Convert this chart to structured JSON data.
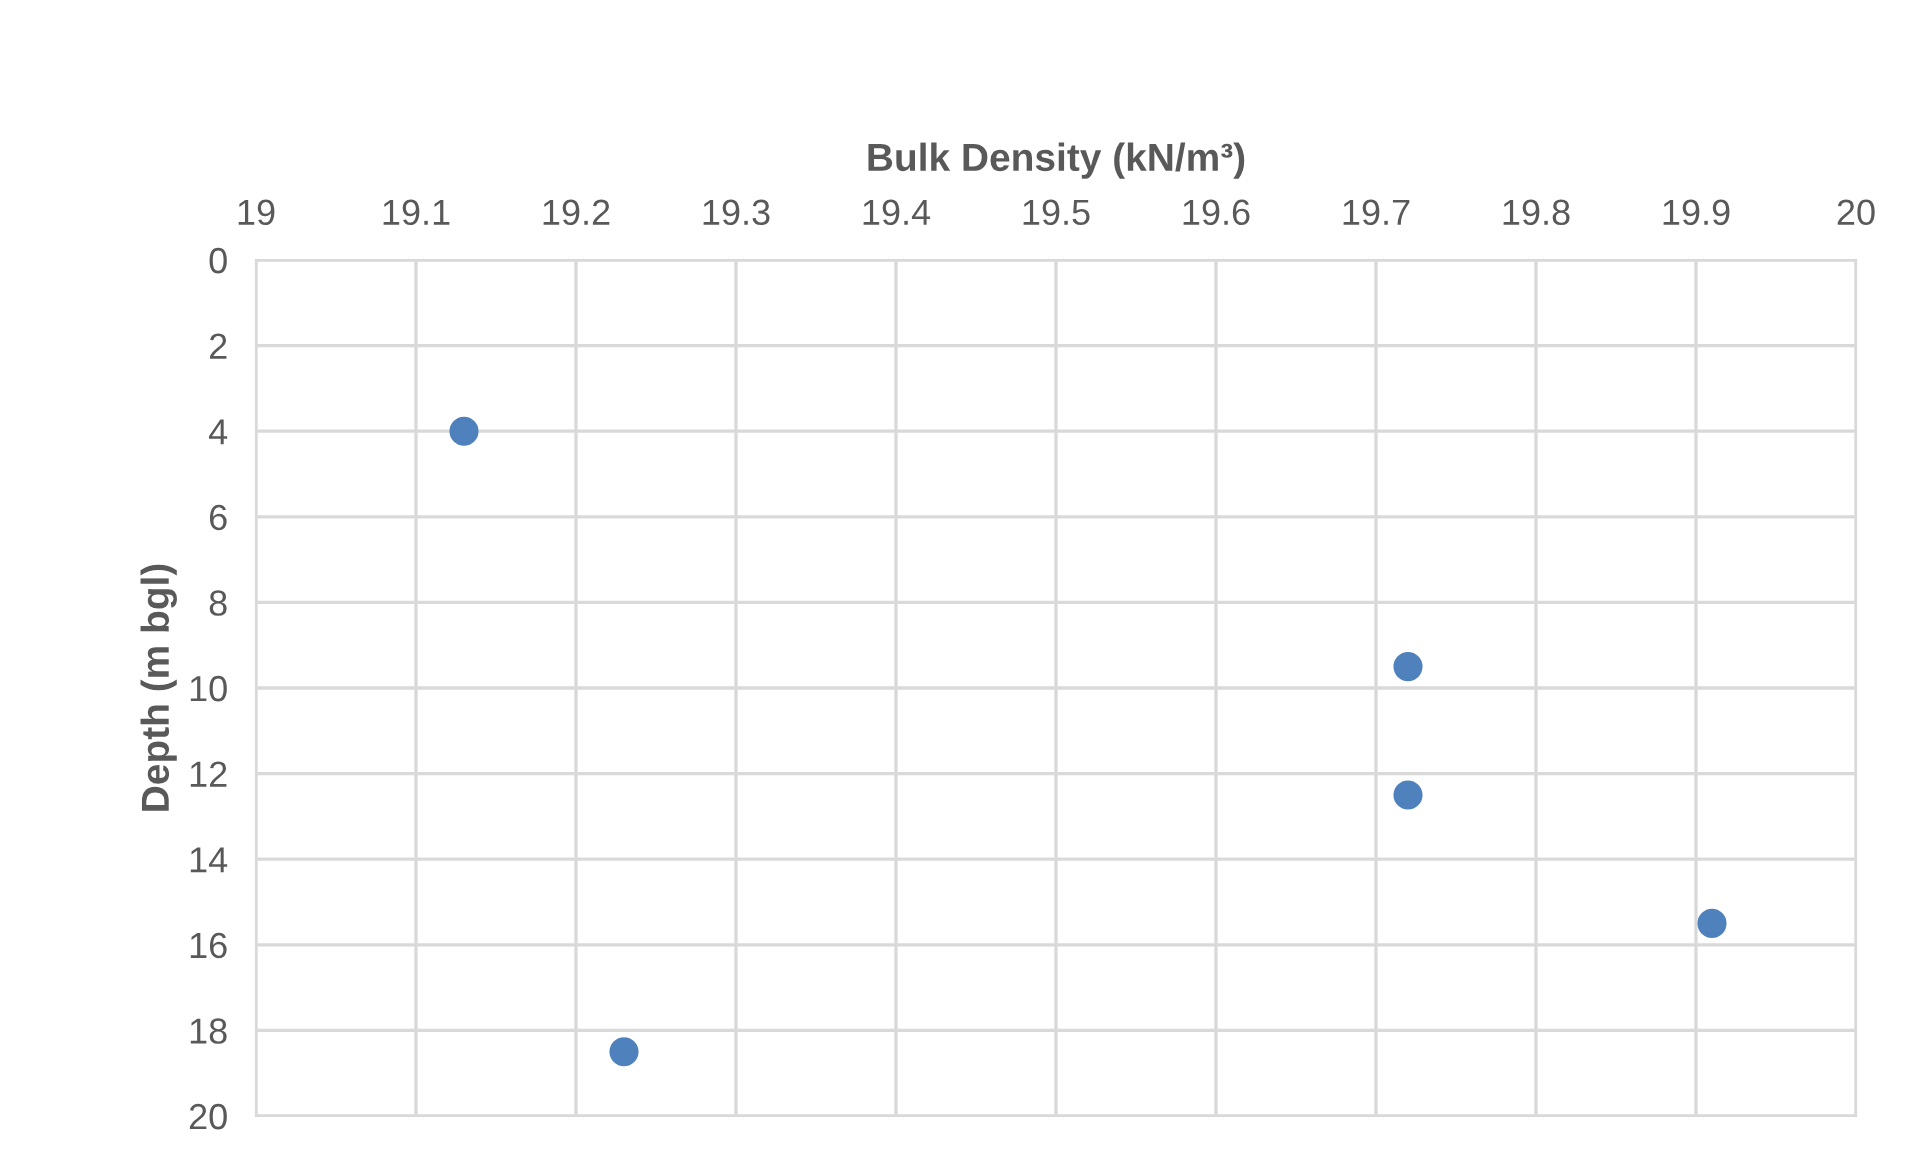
{
  "chart_data": {
    "type": "scatter",
    "xlabel": "Bulk Density (kN/m³)",
    "ylabel": "Depth (m bgl)",
    "series": [
      {
        "color": "#4f81bd",
        "values": [
          4,
          18.5,
          9.5,
          12.5,
          15.5
        ],
        "x": [
          19.13,
          19.23,
          19.72,
          19.72,
          19.91
        ]
      }
    ],
    "xlim": [
      19,
      20
    ],
    "xticks": [
      19,
      19.1,
      19.2,
      19.3,
      19.4,
      19.5,
      19.6,
      19.7,
      19.8,
      19.9,
      20
    ],
    "ylim": [
      20,
      0
    ],
    "yticks": [
      0,
      2,
      4,
      6,
      8,
      10,
      12,
      14,
      16,
      18,
      20
    ],
    "grid": true,
    "marker": "circle",
    "legend": false
  }
}
